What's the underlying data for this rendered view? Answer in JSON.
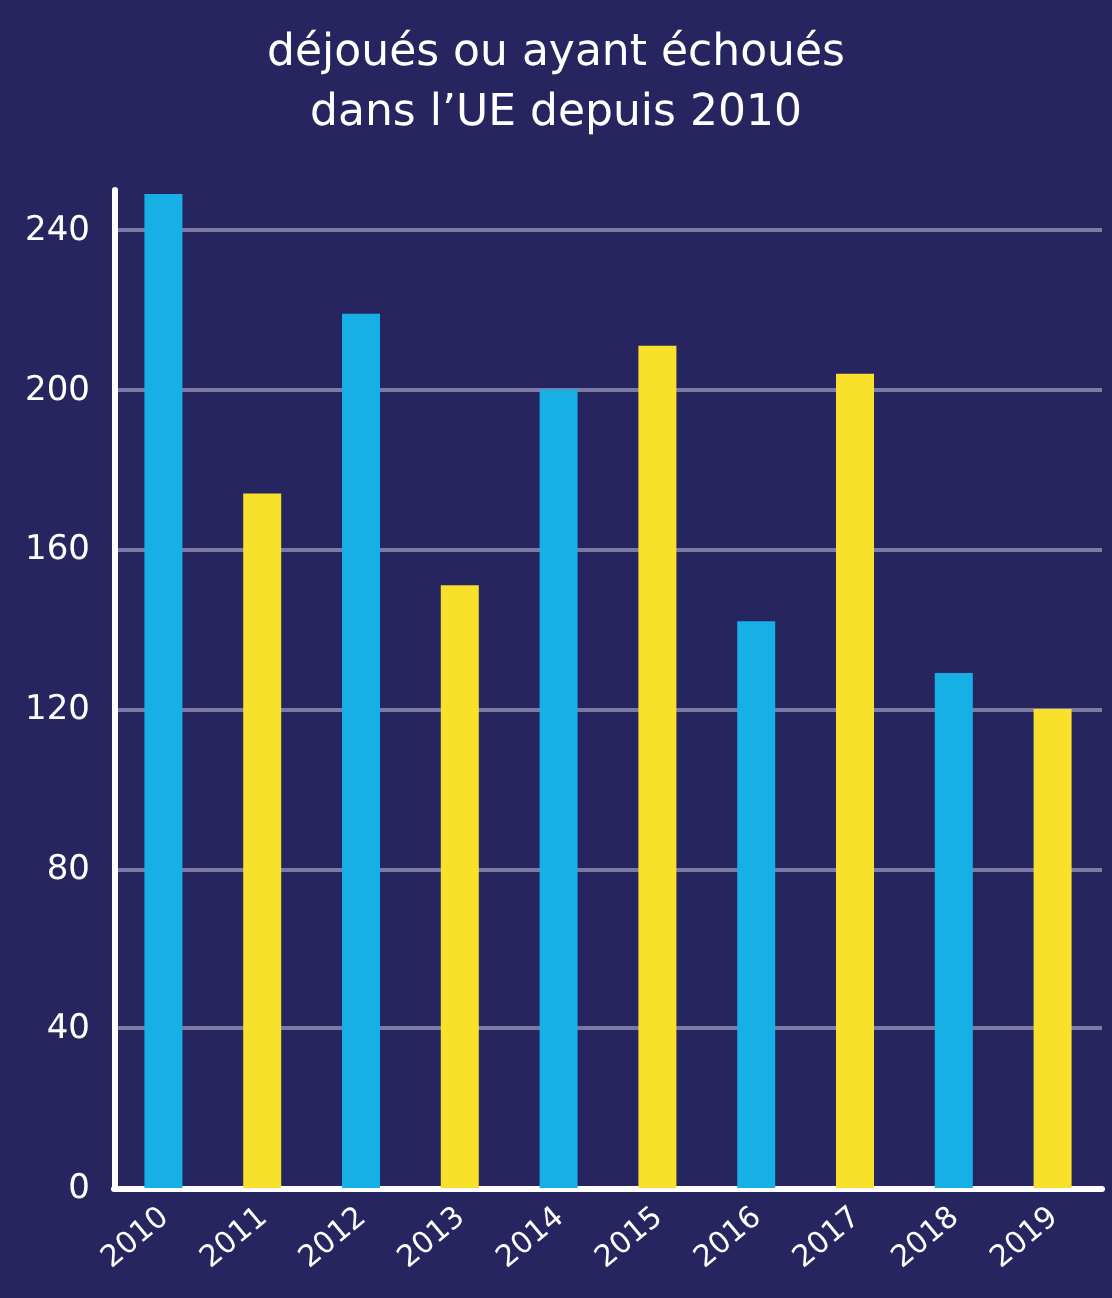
{
  "chart_data": {
    "type": "bar",
    "title": "déjoués ou ayant échoués\ndans l’UE depuis 2010",
    "categories": [
      "2010",
      "2011",
      "2012",
      "2013",
      "2014",
      "2015",
      "2016",
      "2017",
      "2018",
      "2019"
    ],
    "values": [
      249,
      174,
      219,
      151,
      200,
      211,
      142,
      204,
      129,
      120
    ],
    "colors": [
      "#17b0e6",
      "#f9e02a",
      "#17b0e6",
      "#f9e02a",
      "#17b0e6",
      "#f9e02a",
      "#17b0e6",
      "#f9e02a",
      "#17b0e6",
      "#f9e02a"
    ],
    "ylim": [
      0,
      250
    ],
    "yticks": [
      0,
      40,
      80,
      120,
      160,
      200,
      240
    ],
    "grid": "y"
  }
}
